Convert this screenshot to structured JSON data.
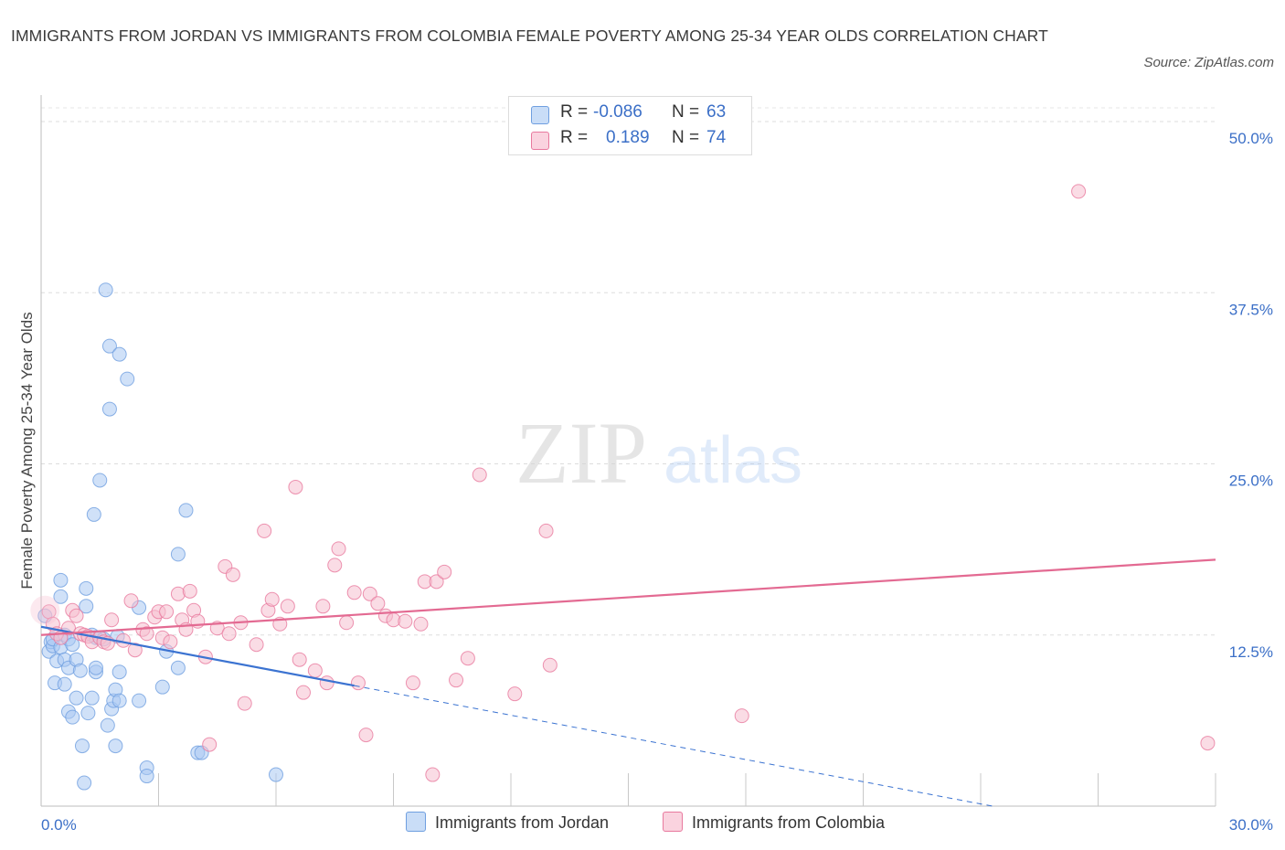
{
  "title": "IMMIGRANTS FROM JORDAN VS IMMIGRANTS FROM COLOMBIA FEMALE POVERTY AMONG 25-34 YEAR OLDS CORRELATION CHART",
  "source": "Source: ZipAtlas.com",
  "watermark": {
    "zip": "ZIP",
    "atlas": "atlas"
  },
  "legend": {
    "r_label": "R =",
    "n_label": "N =",
    "rows": [
      {
        "r": "-0.086",
        "n": "63",
        "color": "#a9c8f2"
      },
      {
        "r": "0.189",
        "n": "74",
        "color": "#f6bfd0"
      }
    ]
  },
  "chart_data": {
    "type": "scatter",
    "title": "IMMIGRANTS FROM JORDAN VS IMMIGRANTS FROM COLOMBIA FEMALE POVERTY AMONG 25-34 YEAR OLDS CORRELATION CHART",
    "xlabel": "",
    "ylabel": "Female Poverty Among 25-34 Year Olds",
    "xlim": [
      0,
      30
    ],
    "ylim": [
      0,
      50
    ],
    "x_tick_labels": [
      "0.0%",
      "30.0%"
    ],
    "y_tick_labels": [
      "12.5%",
      "25.0%",
      "37.5%",
      "50.0%"
    ],
    "y_ticks": [
      12.5,
      25,
      37.5,
      50
    ],
    "grid": true,
    "legend_position": "top-center",
    "series": [
      {
        "name": "Immigrants from Jordan",
        "color": "#6f9fe0",
        "fill": "#a9c8f2",
        "trend": {
          "x": [
            0,
            8
          ],
          "y": [
            13.1,
            8.8
          ],
          "dash_to": [
            24.3,
            0
          ]
        },
        "points": [
          [
            0.1,
            13.9
          ],
          [
            0.2,
            11.3
          ],
          [
            0.25,
            12.0
          ],
          [
            0.3,
            11.7
          ],
          [
            0.3,
            12.2
          ],
          [
            0.35,
            9.0
          ],
          [
            0.4,
            10.6
          ],
          [
            0.5,
            16.5
          ],
          [
            0.5,
            11.6
          ],
          [
            0.5,
            15.3
          ],
          [
            0.6,
            12.5
          ],
          [
            0.6,
            10.7
          ],
          [
            0.6,
            8.9
          ],
          [
            0.7,
            12.2
          ],
          [
            0.7,
            10.1
          ],
          [
            0.7,
            6.9
          ],
          [
            0.8,
            11.8
          ],
          [
            0.8,
            6.5
          ],
          [
            0.9,
            10.7
          ],
          [
            0.9,
            7.9
          ],
          [
            1.0,
            9.9
          ],
          [
            1.05,
            4.4
          ],
          [
            1.1,
            1.7
          ],
          [
            1.15,
            14.6
          ],
          [
            1.15,
            15.9
          ],
          [
            1.2,
            6.8
          ],
          [
            1.3,
            7.9
          ],
          [
            1.3,
            12.5
          ],
          [
            1.35,
            21.3
          ],
          [
            1.4,
            9.8
          ],
          [
            1.4,
            12.3
          ],
          [
            1.4,
            10.1
          ],
          [
            1.5,
            23.8
          ],
          [
            1.6,
            12.2
          ],
          [
            1.65,
            37.7
          ],
          [
            1.7,
            5.9
          ],
          [
            1.75,
            29.0
          ],
          [
            1.75,
            33.6
          ],
          [
            1.8,
            7.1
          ],
          [
            1.85,
            7.7
          ],
          [
            1.9,
            4.4
          ],
          [
            1.9,
            8.5
          ],
          [
            1.95,
            12.4
          ],
          [
            2.0,
            7.7
          ],
          [
            2.0,
            9.8
          ],
          [
            2.0,
            33.0
          ],
          [
            2.2,
            31.2
          ],
          [
            2.5,
            14.5
          ],
          [
            2.5,
            7.7
          ],
          [
            2.7,
            2.8
          ],
          [
            2.7,
            2.2
          ],
          [
            3.1,
            8.7
          ],
          [
            3.2,
            11.3
          ],
          [
            3.5,
            18.4
          ],
          [
            3.5,
            10.1
          ],
          [
            3.7,
            21.6
          ],
          [
            4.0,
            3.9
          ],
          [
            4.1,
            3.9
          ],
          [
            6.0,
            2.3
          ]
        ]
      },
      {
        "name": "Immigrants from Colombia",
        "color": "#e8799e",
        "fill": "#f6bfd0",
        "trend": {
          "x": [
            0,
            30
          ],
          "y": [
            12.5,
            18.0
          ]
        },
        "points": [
          [
            0.2,
            14.2
          ],
          [
            0.3,
            13.3
          ],
          [
            0.4,
            12.6
          ],
          [
            0.5,
            12.3
          ],
          [
            0.7,
            13.0
          ],
          [
            0.8,
            14.3
          ],
          [
            0.9,
            13.9
          ],
          [
            1.0,
            12.6
          ],
          [
            1.1,
            12.5
          ],
          [
            1.2,
            12.4
          ],
          [
            1.3,
            12.0
          ],
          [
            1.5,
            12.3
          ],
          [
            1.6,
            12.0
          ],
          [
            1.7,
            11.9
          ],
          [
            1.8,
            13.6
          ],
          [
            2.1,
            12.1
          ],
          [
            2.3,
            15.0
          ],
          [
            2.4,
            11.4
          ],
          [
            2.6,
            12.9
          ],
          [
            2.7,
            12.6
          ],
          [
            2.9,
            13.8
          ],
          [
            3.0,
            14.2
          ],
          [
            3.1,
            12.3
          ],
          [
            3.2,
            14.2
          ],
          [
            3.3,
            12.0
          ],
          [
            3.5,
            15.5
          ],
          [
            3.6,
            13.6
          ],
          [
            3.7,
            12.9
          ],
          [
            3.8,
            15.7
          ],
          [
            3.9,
            14.3
          ],
          [
            4.0,
            13.5
          ],
          [
            4.2,
            10.9
          ],
          [
            4.3,
            4.5
          ],
          [
            4.5,
            13.0
          ],
          [
            4.7,
            17.5
          ],
          [
            4.8,
            12.6
          ],
          [
            4.9,
            16.9
          ],
          [
            5.1,
            13.4
          ],
          [
            5.2,
            7.5
          ],
          [
            5.5,
            11.8
          ],
          [
            5.7,
            20.1
          ],
          [
            5.8,
            14.3
          ],
          [
            5.9,
            15.1
          ],
          [
            6.1,
            13.3
          ],
          [
            6.3,
            14.6
          ],
          [
            6.5,
            23.3
          ],
          [
            6.6,
            10.7
          ],
          [
            6.7,
            8.3
          ],
          [
            7.0,
            9.9
          ],
          [
            7.2,
            14.6
          ],
          [
            7.3,
            9.0
          ],
          [
            7.5,
            17.6
          ],
          [
            7.6,
            18.8
          ],
          [
            7.8,
            13.4
          ],
          [
            8.0,
            15.6
          ],
          [
            8.1,
            9.0
          ],
          [
            8.3,
            5.2
          ],
          [
            8.4,
            15.5
          ],
          [
            8.6,
            14.8
          ],
          [
            8.8,
            13.9
          ],
          [
            9.0,
            13.6
          ],
          [
            9.3,
            13.5
          ],
          [
            9.5,
            9.0
          ],
          [
            9.7,
            13.3
          ],
          [
            9.8,
            16.4
          ],
          [
            10.0,
            2.3
          ],
          [
            10.1,
            16.4
          ],
          [
            10.3,
            17.1
          ],
          [
            10.6,
            9.2
          ],
          [
            10.9,
            10.8
          ],
          [
            11.2,
            24.2
          ],
          [
            12.1,
            8.2
          ],
          [
            12.9,
            20.1
          ],
          [
            13.0,
            10.3
          ],
          [
            17.9,
            6.6
          ],
          [
            26.5,
            44.9
          ],
          [
            29.8,
            4.6
          ]
        ]
      }
    ]
  }
}
